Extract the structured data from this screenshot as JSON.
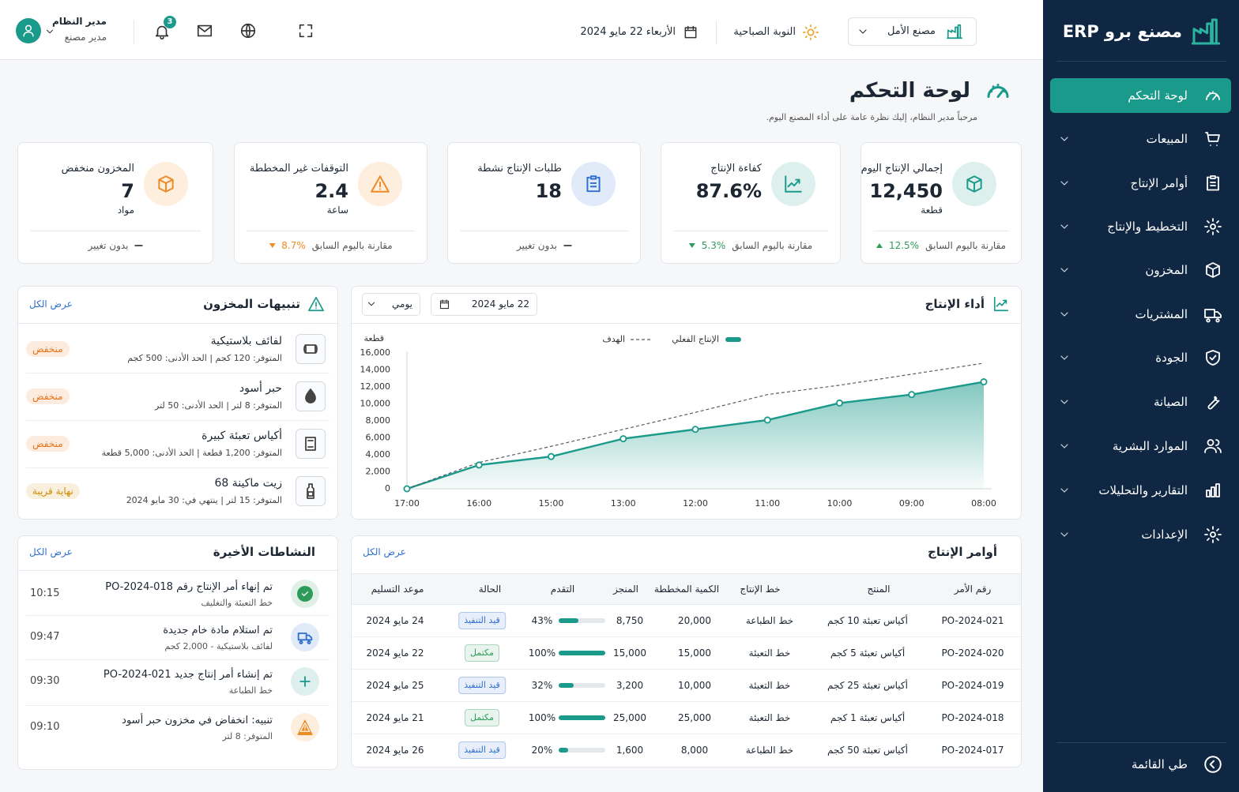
{
  "sidebar": {
    "brand": "مصنع برو ERP",
    "menu": [
      "لوحة التحكم",
      "المبيعات",
      "أوامر الإنتاج",
      "التخطيط والإنتاج",
      "المخزون",
      "المشتريات",
      "الجودة",
      "الصيانة",
      "الموارد البشرية",
      "التقارير والتحليلات",
      "الإعدادات"
    ],
    "collapse": "طي القائمة"
  },
  "header": {
    "factory": "مصنع الأمل",
    "shift": "النوبة الصباحية",
    "date": "الأربعاء 22 مايو 2024",
    "notifications": "3",
    "user_name": "مدير النظام",
    "user_role": "مدير مصنع"
  },
  "page": {
    "title": "لوحة التحكم",
    "subtitle": "مرحباً مدير النظام، إليك نظرة عامة على أداء المصنع اليوم."
  },
  "kpis": [
    {
      "title": "إجمالي الإنتاج اليوم",
      "value": "12,450",
      "unit": "قطعة",
      "compare": "مقارنة باليوم السابق",
      "change": "12.5%",
      "trend": "up",
      "trend_color": "#2e9b5b",
      "color": "#1a9a8a"
    },
    {
      "title": "كفاءة الإنتاج",
      "value": "87.6%",
      "compare": "مقارنة باليوم السابق",
      "change": "5.3%",
      "trend": "down",
      "trend_color": "#2e9b5b",
      "color": "#1a9a8a"
    },
    {
      "title": "طلبات الإنتاج نشطة",
      "value": "18",
      "compare": "بدون تغيير",
      "color": "#2f6fd0"
    },
    {
      "title": "التوقفات غير المخططة",
      "value": "2.4",
      "unit": "ساعة",
      "compare": "مقارنة باليوم السابق",
      "change": "8.7%",
      "trend": "down",
      "trend_color": "#f08a24",
      "color": "#f08a24"
    },
    {
      "title": "المخزون منخفض",
      "value": "7",
      "unit": "مواد",
      "compare": "بدون تغيير",
      "color": "#f08a24"
    }
  ],
  "chart_data": {
    "type": "line",
    "title": "أداء الإنتاج",
    "date": "22 مايو 2024",
    "period": "يومي",
    "y_label": "قطعة",
    "categories": [
      "17:00",
      "16:00",
      "15:00",
      "13:00",
      "12:00",
      "11:00",
      "10:00",
      "09:00",
      "08:00"
    ],
    "series": [
      {
        "name": "الإنتاج الفعلي",
        "color": "#1a9a8a",
        "values": [
          0,
          2800,
          3800,
          5900,
          7000,
          8100,
          10100,
          11100,
          12600
        ]
      },
      {
        "name": "الهدف",
        "color": "#555e66",
        "dash": true,
        "values": [
          0,
          3100,
          5000,
          7000,
          9000,
          11100,
          12200,
          13500,
          14800
        ]
      }
    ],
    "ylim": [
      0,
      16000
    ],
    "yticks": [
      0,
      {
        "value": 2000,
        "label": "2,000"
      },
      {
        "value": 4000,
        "label": "4,000"
      },
      {
        "value": 6000,
        "label": "6,000"
      },
      {
        "value": 8000,
        "label": "8,000"
      },
      {
        "value": 10000,
        "label": "10,000"
      },
      {
        "value": 12000,
        "label": "12,000"
      },
      {
        "value": 14000,
        "label": "14,000"
      },
      {
        "value": 16000,
        "label": "16,000"
      }
    ],
    "grid": false
  },
  "inventory_alerts": {
    "title": "تنبيهات المخزون",
    "view_all": "عرض الكل",
    "items": [
      {
        "name": "لفائف بلاستيكية",
        "detail": "المتوفر: 120 كجم | الحد الأدنى: 500 كجم",
        "status": "منخفض",
        "status_color": "#e8741a"
      },
      {
        "name": "حبر أسود",
        "detail": "المتوفر: 8 لتر | الحد الأدنى: 50 لتر",
        "status": "منخفض",
        "status_color": "#e8741a"
      },
      {
        "name": "أكياس تعبئة كبيرة",
        "detail": "المتوفر: 1,200 قطعة | الحد الأدنى: 5,000 قطعة",
        "status": "منخفض",
        "status_color": "#e8741a"
      },
      {
        "name": "زيت ماكينة 68",
        "detail": "المتوفر: 15 لتر | ينتهي في: 30 مايو 2024",
        "status": "نهاية قريبة",
        "status_color": "#cf8a00"
      }
    ]
  },
  "orders": {
    "title": "أوامر الإنتاج",
    "view_all": "عرض الكل",
    "columns": [
      "رقم الأمر",
      "المنتج",
      "خط الإنتاج",
      "الكمية المخططة",
      "المنجز",
      "التقدم",
      "الحالة",
      "موعد التسليم"
    ],
    "rows": [
      {
        "id": "PO-2024-021",
        "product": "أكياس تعبئة 10 كجم",
        "line": "خط الطباعة",
        "planned": "20,000",
        "done": "8,750",
        "progress": 43,
        "progress_label": "43%",
        "status": "قيد التنفيذ",
        "status_color": "#2f6fd0",
        "due": "24 مايو 2024"
      },
      {
        "id": "PO-2024-020",
        "product": "أكياس تعبئة 5 كجم",
        "line": "خط التعبئة",
        "planned": "15,000",
        "done": "15,000",
        "progress": 100,
        "progress_label": "100%",
        "status": "مكتمل",
        "status_color": "#2e9b5b",
        "due": "22 مايو 2024"
      },
      {
        "id": "PO-2024-019",
        "product": "أكياس تعبئة 25 كجم",
        "line": "خط التعبئة",
        "planned": "10,000",
        "done": "3,200",
        "progress": 32,
        "progress_label": "32%",
        "status": "قيد التنفيذ",
        "status_color": "#2f6fd0",
        "due": "25 مايو 2024"
      },
      {
        "id": "PO-2024-018",
        "product": "أكياس تعبئة 1 كجم",
        "line": "خط التعبئة",
        "planned": "25,000",
        "done": "25,000",
        "progress": 100,
        "progress_label": "100%",
        "status": "مكتمل",
        "status_color": "#2e9b5b",
        "due": "21 مايو 2024"
      },
      {
        "id": "PO-2024-017",
        "product": "أكياس تعبئة 50 كجم",
        "line": "خط الطباعة",
        "planned": "8,000",
        "done": "1,600",
        "progress": 20,
        "progress_label": "20%",
        "status": "قيد التنفيذ",
        "status_color": "#2f6fd0",
        "due": "26 مايو 2024"
      }
    ]
  },
  "activities": {
    "title": "النشاطات الأخيرة",
    "view_all": "عرض الكل",
    "items": [
      {
        "text": "تم إنهاء أمر الإنتاج رقم PO-2024-018",
        "sub": "خط التعبئة والتغليف",
        "time": "10:15",
        "color": "#2e9b5b"
      },
      {
        "text": "تم استلام مادة خام جديدة",
        "sub": "لفائف بلاستيكية - 2,000 كجم",
        "time": "09:47",
        "color": "#2f6fd0"
      },
      {
        "text": "تم إنشاء أمر إنتاج جديد PO-2024-021",
        "sub": "خط الطباعة",
        "time": "09:30",
        "color": "#1a9a8a"
      },
      {
        "text": "تنبيه: انخفاض في مخزون حبر أسود",
        "sub": "المتوفر: 8 لتر",
        "time": "09:10",
        "color": "#f08a24"
      }
    ]
  }
}
